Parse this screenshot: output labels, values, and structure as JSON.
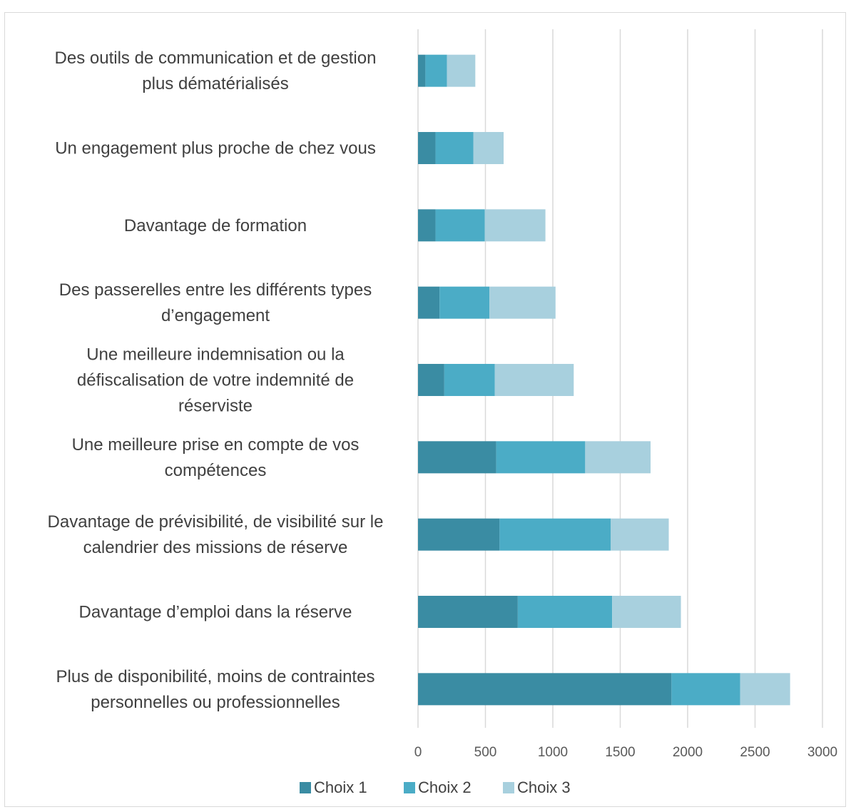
{
  "chart_data": {
    "type": "bar",
    "orientation": "horizontal",
    "stacked": true,
    "title": "",
    "xlabel": "",
    "ylabel": "",
    "xlim": [
      0,
      3000
    ],
    "xticks": [
      0,
      500,
      1000,
      1500,
      2000,
      2500,
      3000
    ],
    "grid": true,
    "legend_position": "bottom",
    "categories": [
      [
        "Des outils de communication et de gestion",
        "plus dématérialisés"
      ],
      [
        "Un engagement plus proche de chez vous"
      ],
      [
        "Davantage de formation"
      ],
      [
        "Des passerelles entre les différents types",
        "d’engagement"
      ],
      [
        "Une meilleure indemnisation ou la",
        "défiscalisation de votre indemnité de",
        "réserviste"
      ],
      [
        "Une meilleure prise en compte de vos",
        "compétences"
      ],
      [
        "Davantage de prévisibilité, de visibilité sur le",
        "calendrier des missions de réserve"
      ],
      [
        "Davantage d’emploi dans la réserve"
      ],
      [
        "Plus de disponibilité, moins de contraintes",
        "personnelles ou professionnelles"
      ]
    ],
    "series": [
      {
        "name": "Choix 1",
        "color": "#3a8ca3",
        "values": [
          55,
          130,
          130,
          160,
          195,
          580,
          605,
          740,
          1880
        ]
      },
      {
        "name": "Choix 2",
        "color": "#4bacc6",
        "values": [
          160,
          280,
          365,
          370,
          375,
          660,
          825,
          700,
          510
        ]
      },
      {
        "name": "Choix 3",
        "color": "#a8d0de",
        "values": [
          210,
          225,
          450,
          490,
          585,
          485,
          430,
          510,
          370
        ]
      }
    ]
  }
}
